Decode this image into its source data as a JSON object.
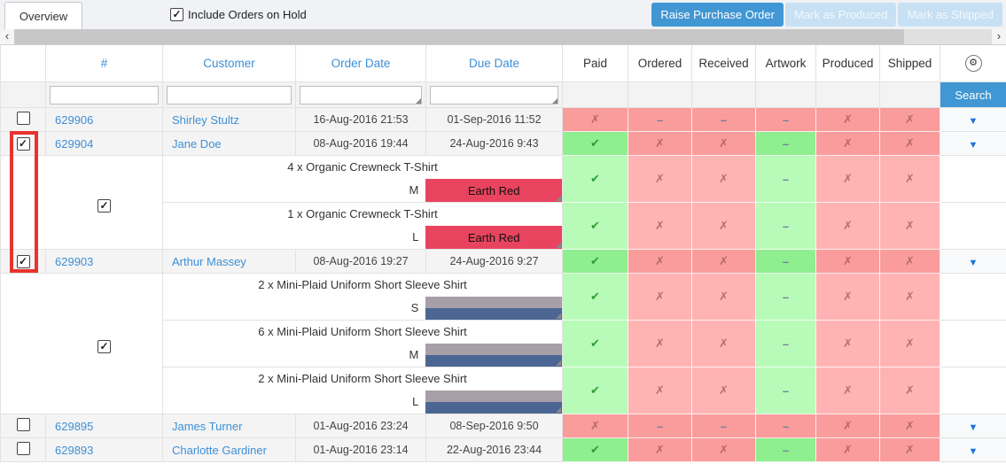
{
  "tab": {
    "label": "Overview"
  },
  "toolbar": {
    "include_orders_label": "Include Orders on Hold",
    "include_orders_checked": true,
    "buttons": [
      {
        "label": "Raise Purchase Order",
        "enabled": true
      },
      {
        "label": "Mark as Produced",
        "enabled": false
      },
      {
        "label": "Mark as Shipped",
        "enabled": false
      }
    ]
  },
  "icons": {
    "scroll_left": "‹",
    "scroll_right": "›",
    "gear": "⚙",
    "caret_down": "▼",
    "check": "✔",
    "cross": "✗",
    "dash": "–",
    "checkbox_check": "✓"
  },
  "colors": {
    "accent_blue": "#4197d3",
    "link_blue": "#3d8fd6",
    "status_red": "#fa9c9c",
    "status_green": "#8fee8f",
    "status_red_light": "#ffb3b3",
    "status_green_light": "#b8fbb8",
    "highlight_red": "#e8332e"
  },
  "table": {
    "columns": [
      "#",
      "Customer",
      "Order Date",
      "Due Date",
      "Paid",
      "Ordered",
      "Received",
      "Artwork",
      "Produced",
      "Shipped"
    ],
    "status_keys": [
      "paid",
      "ordered",
      "received",
      "artwork",
      "produced",
      "shipped"
    ],
    "search_label": "Search",
    "filter_placeholders": {
      "number": "",
      "customer": "",
      "order_date": "",
      "due_date": ""
    }
  },
  "orders": [
    {
      "id": "629906",
      "customer": "Shirley Stultz",
      "order_date": "16-Aug-2016 21:53",
      "due_date": "01-Sep-2016 11:52",
      "checked": false,
      "statuses": [
        {
          "icon": "cross",
          "tone": "red"
        },
        {
          "icon": "dash",
          "tone": "red"
        },
        {
          "icon": "dash",
          "tone": "red"
        },
        {
          "icon": "dash",
          "tone": "red"
        },
        {
          "icon": "cross",
          "tone": "red"
        },
        {
          "icon": "cross",
          "tone": "red"
        }
      ]
    },
    {
      "id": "629904",
      "customer": "Jane Doe",
      "order_date": "08-Aug-2016 19:44",
      "due_date": "24-Aug-2016 9:43",
      "checked": true,
      "items_checked": true,
      "statuses": [
        {
          "icon": "check",
          "tone": "green"
        },
        {
          "icon": "cross",
          "tone": "red"
        },
        {
          "icon": "cross",
          "tone": "red"
        },
        {
          "icon": "dash",
          "tone": "green"
        },
        {
          "icon": "cross",
          "tone": "red"
        },
        {
          "icon": "cross",
          "tone": "red"
        }
      ],
      "items": [
        {
          "name": "4 x Organic Crewneck T-Shirt",
          "size": "M",
          "swatch": {
            "label": "Earth Red",
            "colors": [
              "#e8445f"
            ]
          },
          "statuses": [
            {
              "icon": "check",
              "tone": "green"
            },
            {
              "icon": "cross",
              "tone": "red"
            },
            {
              "icon": "cross",
              "tone": "red"
            },
            {
              "icon": "dash",
              "tone": "green"
            },
            {
              "icon": "cross",
              "tone": "red"
            },
            {
              "icon": "cross",
              "tone": "red"
            }
          ]
        },
        {
          "name": "1 x Organic Crewneck T-Shirt",
          "size": "L",
          "swatch": {
            "label": "Earth Red",
            "colors": [
              "#e8445f"
            ]
          },
          "statuses": [
            {
              "icon": "check",
              "tone": "green"
            },
            {
              "icon": "cross",
              "tone": "red"
            },
            {
              "icon": "cross",
              "tone": "red"
            },
            {
              "icon": "dash",
              "tone": "green"
            },
            {
              "icon": "cross",
              "tone": "red"
            },
            {
              "icon": "cross",
              "tone": "red"
            }
          ]
        }
      ]
    },
    {
      "id": "629903",
      "customer": "Arthur Massey",
      "order_date": "08-Aug-2016 19:27",
      "due_date": "24-Aug-2016 9:27",
      "checked": true,
      "items_checked": true,
      "statuses": [
        {
          "icon": "check",
          "tone": "green"
        },
        {
          "icon": "cross",
          "tone": "red"
        },
        {
          "icon": "cross",
          "tone": "red"
        },
        {
          "icon": "dash",
          "tone": "green"
        },
        {
          "icon": "cross",
          "tone": "red"
        },
        {
          "icon": "cross",
          "tone": "red"
        }
      ],
      "items": [
        {
          "name": "2 x Mini-Plaid Uniform Short Sleeve Shirt",
          "size": "S",
          "swatch": {
            "label": "",
            "colors": [
              "#a79fa8",
              "#4c6694"
            ]
          },
          "statuses": [
            {
              "icon": "check",
              "tone": "green"
            },
            {
              "icon": "cross",
              "tone": "red"
            },
            {
              "icon": "cross",
              "tone": "red"
            },
            {
              "icon": "dash",
              "tone": "green"
            },
            {
              "icon": "cross",
              "tone": "red"
            },
            {
              "icon": "cross",
              "tone": "red"
            }
          ]
        },
        {
          "name": "6 x Mini-Plaid Uniform Short Sleeve Shirt",
          "size": "M",
          "swatch": {
            "label": "",
            "colors": [
              "#a79fa8",
              "#4c6694"
            ]
          },
          "statuses": [
            {
              "icon": "check",
              "tone": "green"
            },
            {
              "icon": "cross",
              "tone": "red"
            },
            {
              "icon": "cross",
              "tone": "red"
            },
            {
              "icon": "dash",
              "tone": "green"
            },
            {
              "icon": "cross",
              "tone": "red"
            },
            {
              "icon": "cross",
              "tone": "red"
            }
          ]
        },
        {
          "name": "2 x Mini-Plaid Uniform Short Sleeve Shirt",
          "size": "L",
          "swatch": {
            "label": "",
            "colors": [
              "#a79fa8",
              "#4c6694"
            ]
          },
          "statuses": [
            {
              "icon": "check",
              "tone": "green"
            },
            {
              "icon": "cross",
              "tone": "red"
            },
            {
              "icon": "cross",
              "tone": "red"
            },
            {
              "icon": "dash",
              "tone": "green"
            },
            {
              "icon": "cross",
              "tone": "red"
            },
            {
              "icon": "cross",
              "tone": "red"
            }
          ]
        }
      ]
    },
    {
      "id": "629895",
      "customer": "James Turner",
      "order_date": "01-Aug-2016 23:24",
      "due_date": "08-Sep-2016 9:50",
      "checked": false,
      "statuses": [
        {
          "icon": "cross",
          "tone": "red"
        },
        {
          "icon": "dash",
          "tone": "red"
        },
        {
          "icon": "dash",
          "tone": "red"
        },
        {
          "icon": "dash",
          "tone": "red"
        },
        {
          "icon": "cross",
          "tone": "red"
        },
        {
          "icon": "cross",
          "tone": "red"
        }
      ]
    },
    {
      "id": "629893",
      "customer": "Charlotte Gardiner",
      "order_date": "01-Aug-2016 23:14",
      "due_date": "22-Aug-2016 23:44",
      "checked": false,
      "statuses": [
        {
          "icon": "check",
          "tone": "green"
        },
        {
          "icon": "cross",
          "tone": "red"
        },
        {
          "icon": "cross",
          "tone": "red"
        },
        {
          "icon": "dash",
          "tone": "green"
        },
        {
          "icon": "cross",
          "tone": "red"
        },
        {
          "icon": "cross",
          "tone": "red"
        }
      ]
    }
  ],
  "annotation": {
    "highlight_color": "#e8332e"
  }
}
